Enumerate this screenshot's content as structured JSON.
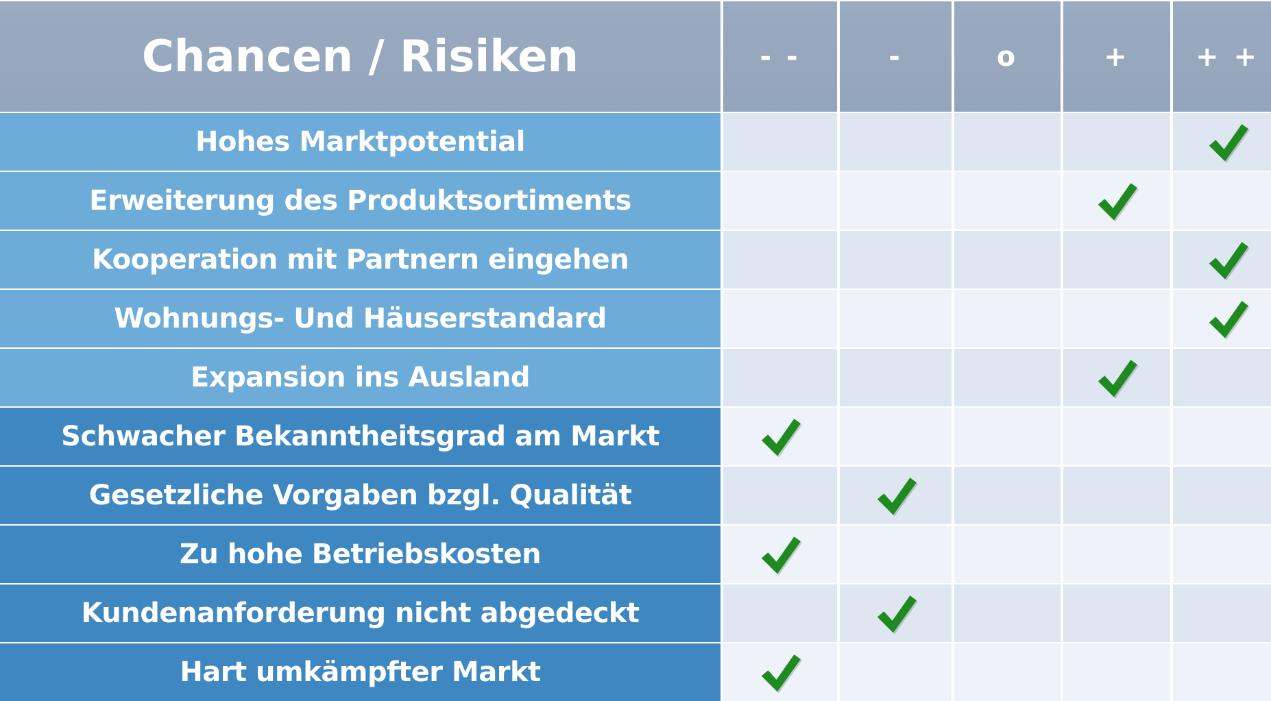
{
  "table": {
    "title": "Chancen / Risiken",
    "ratings": [
      "- -",
      "-",
      "o",
      "+",
      "+ +"
    ],
    "rows": [
      {
        "label": "Hohes Marktpotential",
        "type": "chance",
        "rating_index": 4
      },
      {
        "label": "Erweiterung des Produktsortiments",
        "type": "chance",
        "rating_index": 3
      },
      {
        "label": "Kooperation mit Partnern eingehen",
        "type": "chance",
        "rating_index": 4
      },
      {
        "label": "Wohnungs- Und Häuserstandard",
        "type": "chance",
        "rating_index": 4
      },
      {
        "label": "Expansion ins Ausland",
        "type": "chance",
        "rating_index": 3
      },
      {
        "label": "Schwacher Bekanntheitsgrad am Markt",
        "type": "risk",
        "rating_index": 0
      },
      {
        "label": "Gesetzliche Vorgaben bzgl. Qualität",
        "type": "risk",
        "rating_index": 1
      },
      {
        "label": "Zu hohe Betriebskosten",
        "type": "risk",
        "rating_index": 0
      },
      {
        "label": "Kundenanforderung nicht abgedeckt",
        "type": "risk",
        "rating_index": 1
      },
      {
        "label": "Hart umkämpfter Markt",
        "type": "risk",
        "rating_index": 0
      }
    ]
  },
  "colors": {
    "header": "#97a8bf",
    "chance": "#6dabd8",
    "risk": "#3f87c1",
    "check": "#1f8a1f"
  },
  "icons": {
    "check": "check-icon"
  }
}
